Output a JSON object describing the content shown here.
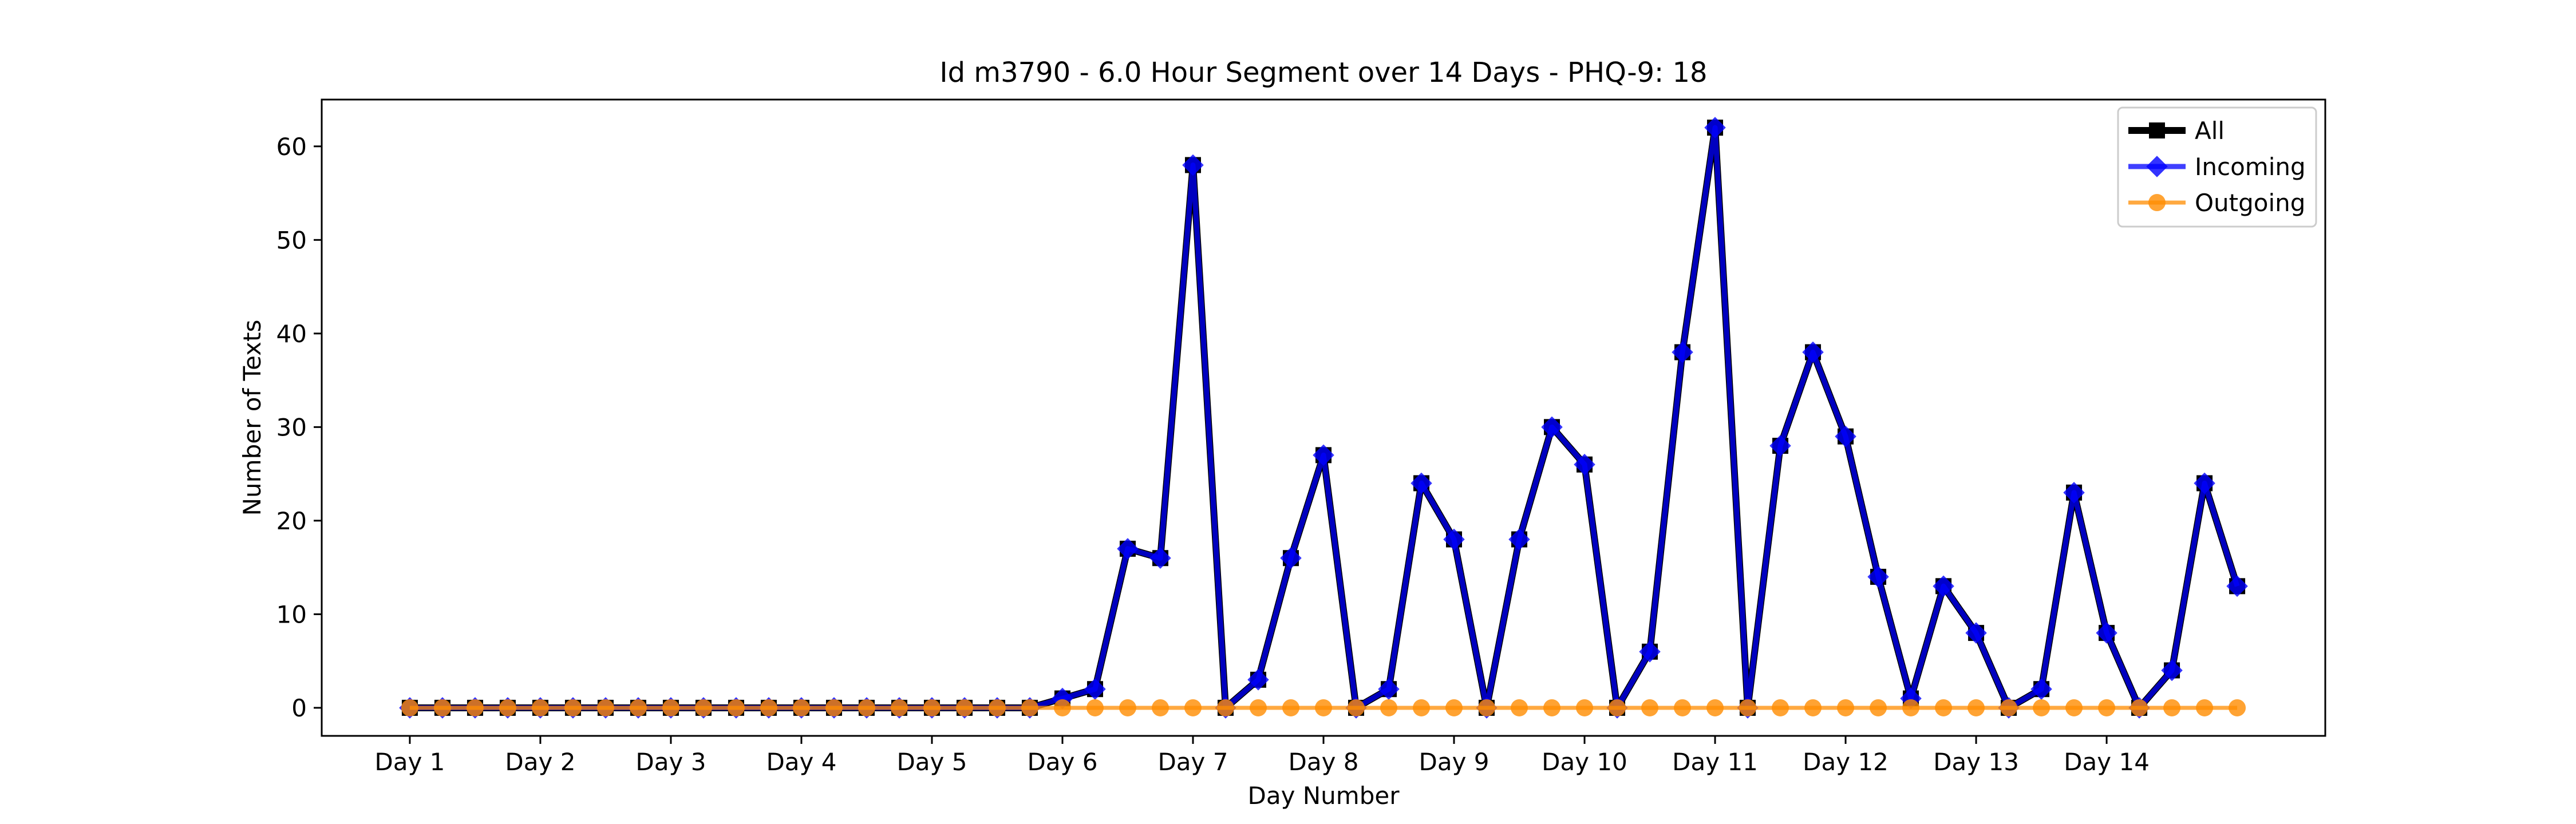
{
  "chart_data": {
    "type": "line",
    "title": "Id m3790 - 6.0 Hour Segment over 14 Days - PHQ-9: 18",
    "xlabel": "Day Number",
    "ylabel": "Number of Texts",
    "ylim": [
      -3,
      65
    ],
    "yticks": [
      0,
      10,
      20,
      30,
      40,
      50,
      60
    ],
    "xtick_labels": [
      "Day 1",
      "Day 2",
      "Day 3",
      "Day 4",
      "Day 5",
      "Day 6",
      "Day 7",
      "Day 8",
      "Day 9",
      "Day 10",
      "Day 11",
      "Day 12",
      "Day 13",
      "Day 14"
    ],
    "points_per_day": 4,
    "grid": false,
    "legend_position": "top-right",
    "series": [
      {
        "name": "All",
        "color": "#000000",
        "marker": "square",
        "values": [
          0,
          0,
          0,
          0,
          0,
          0,
          0,
          0,
          0,
          0,
          0,
          0,
          0,
          0,
          0,
          0,
          0,
          0,
          0,
          0,
          1,
          2,
          17,
          16,
          58,
          0,
          3,
          16,
          27,
          0,
          2,
          24,
          18,
          0,
          18,
          30,
          26,
          0,
          6,
          38,
          62,
          0,
          28,
          38,
          29,
          14,
          1,
          13,
          8,
          0,
          2,
          23,
          8,
          0,
          4,
          24,
          13
        ]
      },
      {
        "name": "Incoming",
        "color": "#0000ff",
        "marker": "diamond",
        "values": [
          0,
          0,
          0,
          0,
          0,
          0,
          0,
          0,
          0,
          0,
          0,
          0,
          0,
          0,
          0,
          0,
          0,
          0,
          0,
          0,
          1,
          2,
          17,
          16,
          58,
          0,
          3,
          16,
          27,
          0,
          2,
          24,
          18,
          0,
          18,
          30,
          26,
          0,
          6,
          38,
          62,
          0,
          28,
          38,
          29,
          14,
          1,
          13,
          8,
          0,
          2,
          23,
          8,
          0,
          4,
          24,
          13
        ]
      },
      {
        "name": "Outgoing",
        "color": "#ff8c00",
        "marker": "circle",
        "values": [
          0,
          0,
          0,
          0,
          0,
          0,
          0,
          0,
          0,
          0,
          0,
          0,
          0,
          0,
          0,
          0,
          0,
          0,
          0,
          0,
          0,
          0,
          0,
          0,
          0,
          0,
          0,
          0,
          0,
          0,
          0,
          0,
          0,
          0,
          0,
          0,
          0,
          0,
          0,
          0,
          0,
          0,
          0,
          0,
          0,
          0,
          0,
          0,
          0,
          0,
          0,
          0,
          0,
          0,
          0,
          0,
          0
        ]
      }
    ]
  }
}
